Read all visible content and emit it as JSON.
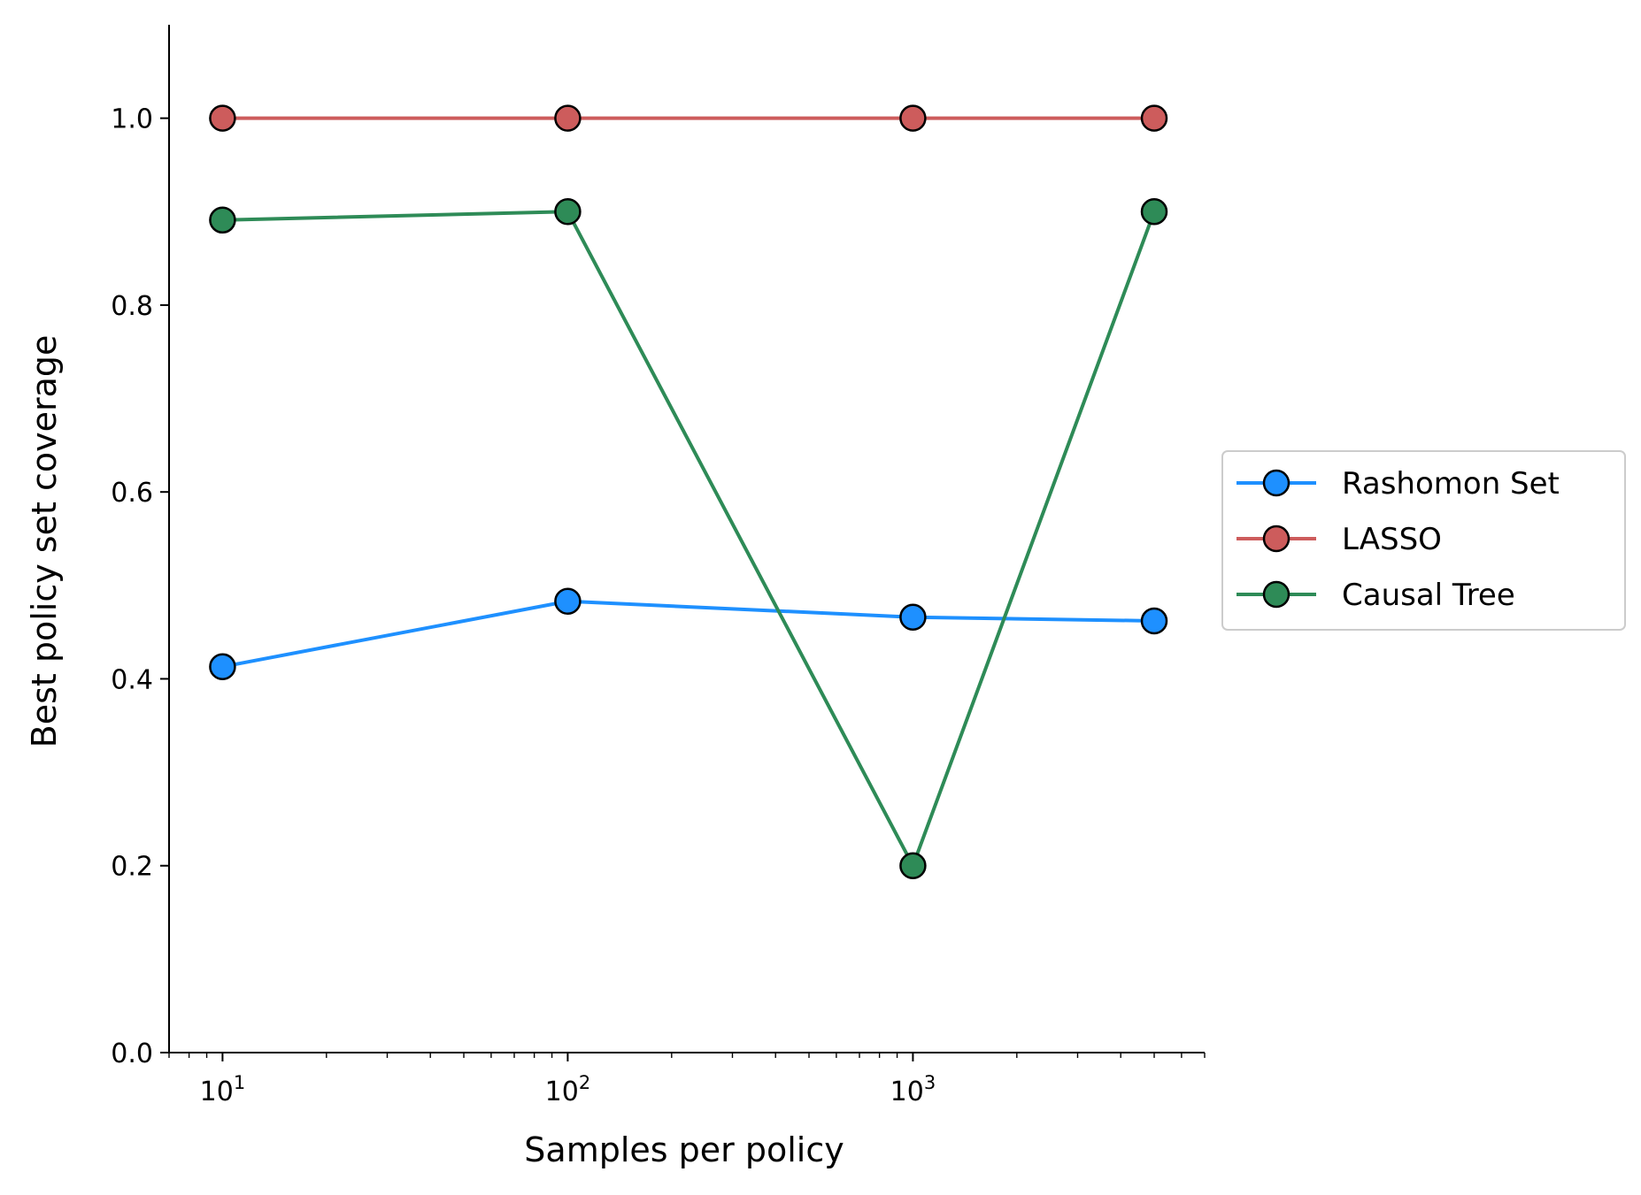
{
  "chart_data": {
    "type": "line",
    "title": "",
    "xlabel": "Samples per policy",
    "ylabel": "Best policy set coverage",
    "xscale": "log",
    "xlim": [
      7,
      7000
    ],
    "ylim": [
      0,
      1.1
    ],
    "x_ticks": [
      {
        "value": 10,
        "base": "10",
        "exp": "1"
      },
      {
        "value": 100,
        "base": "10",
        "exp": "2"
      },
      {
        "value": 1000,
        "base": "10",
        "exp": "3"
      }
    ],
    "y_ticks": [
      0.0,
      0.2,
      0.4,
      0.6,
      0.8,
      1.0
    ],
    "y_tick_labels": [
      "0.0",
      "0.2",
      "0.4",
      "0.6",
      "0.8",
      "1.0"
    ],
    "grid": false,
    "legend_position": "right, outside plot",
    "x": [
      10,
      100,
      1000,
      5000
    ],
    "series": [
      {
        "name": "Rashomon Set",
        "color": "#1e90ff",
        "values": [
          0.413,
          0.483,
          0.466,
          0.462
        ]
      },
      {
        "name": "LASSO",
        "color": "#cd5c5c",
        "values": [
          1.0,
          1.0,
          1.0,
          1.0
        ]
      },
      {
        "name": "Causal Tree",
        "color": "#2e8b57",
        "values": [
          0.891,
          0.9,
          0.2,
          0.9
        ]
      }
    ],
    "marker_edge_color": "#000000"
  }
}
